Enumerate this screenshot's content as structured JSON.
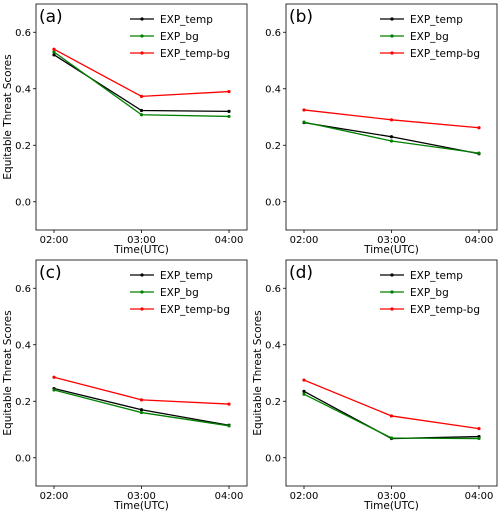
{
  "chart_data": [
    {
      "type": "line",
      "panel_label": "(a)",
      "categories": [
        "02:00",
        "03:00",
        "04:00"
      ],
      "xlabel": "Time(UTC)",
      "ylabel": "Equitable Threat Scores",
      "ylim": [
        -0.1,
        0.7
      ],
      "yticks": [
        "0.0",
        "0.2",
        "0.4",
        "0.6"
      ],
      "legend_position": "top-right",
      "series": [
        {
          "name": "EXP_temp",
          "color": "#000000",
          "values": [
            0.52,
            0.323,
            0.32
          ]
        },
        {
          "name": "EXP_bg",
          "color": "#008000",
          "values": [
            0.53,
            0.308,
            0.302
          ]
        },
        {
          "name": "EXP_temp-bg",
          "color": "#ff0000",
          "values": [
            0.54,
            0.373,
            0.39
          ]
        }
      ]
    },
    {
      "type": "line",
      "panel_label": "(b)",
      "categories": [
        "02:00",
        "03:00",
        "04:00"
      ],
      "xlabel": "Time(UTC)",
      "ylabel": "",
      "ylim": [
        -0.1,
        0.7
      ],
      "yticks": [
        "0.0",
        "0.2",
        "0.4",
        "0.6"
      ],
      "legend_position": "top-right",
      "series": [
        {
          "name": "EXP_temp",
          "color": "#000000",
          "values": [
            0.28,
            0.23,
            0.17
          ]
        },
        {
          "name": "EXP_bg",
          "color": "#008000",
          "values": [
            0.282,
            0.215,
            0.172
          ]
        },
        {
          "name": "EXP_temp-bg",
          "color": "#ff0000",
          "values": [
            0.325,
            0.29,
            0.262
          ]
        }
      ]
    },
    {
      "type": "line",
      "panel_label": "(c)",
      "categories": [
        "02:00",
        "03:00",
        "04:00"
      ],
      "xlabel": "Time(UTC)",
      "ylabel": "Equitable Threat Scores",
      "ylim": [
        -0.1,
        0.7
      ],
      "yticks": [
        "0.0",
        "0.2",
        "0.4",
        "0.6"
      ],
      "legend_position": "top-right",
      "series": [
        {
          "name": "EXP_temp",
          "color": "#000000",
          "values": [
            0.245,
            0.17,
            0.115
          ]
        },
        {
          "name": "EXP_bg",
          "color": "#008000",
          "values": [
            0.24,
            0.16,
            0.113
          ]
        },
        {
          "name": "EXP_temp-bg",
          "color": "#ff0000",
          "values": [
            0.285,
            0.205,
            0.19
          ]
        }
      ]
    },
    {
      "type": "line",
      "panel_label": "(d)",
      "categories": [
        "02:00",
        "03:00",
        "04:00"
      ],
      "xlabel": "Time(UTC)",
      "ylabel": "Equitable Threat Scores",
      "ylim": [
        -0.1,
        0.7
      ],
      "yticks": [
        "0.0",
        "0.2",
        "0.4",
        "0.6"
      ],
      "legend_position": "top-right",
      "series": [
        {
          "name": "EXP_temp",
          "color": "#000000",
          "values": [
            0.235,
            0.068,
            0.075
          ]
        },
        {
          "name": "EXP_bg",
          "color": "#008000",
          "values": [
            0.225,
            0.07,
            0.068
          ]
        },
        {
          "name": "EXP_temp-bg",
          "color": "#ff0000",
          "values": [
            0.275,
            0.148,
            0.103
          ]
        }
      ]
    }
  ]
}
